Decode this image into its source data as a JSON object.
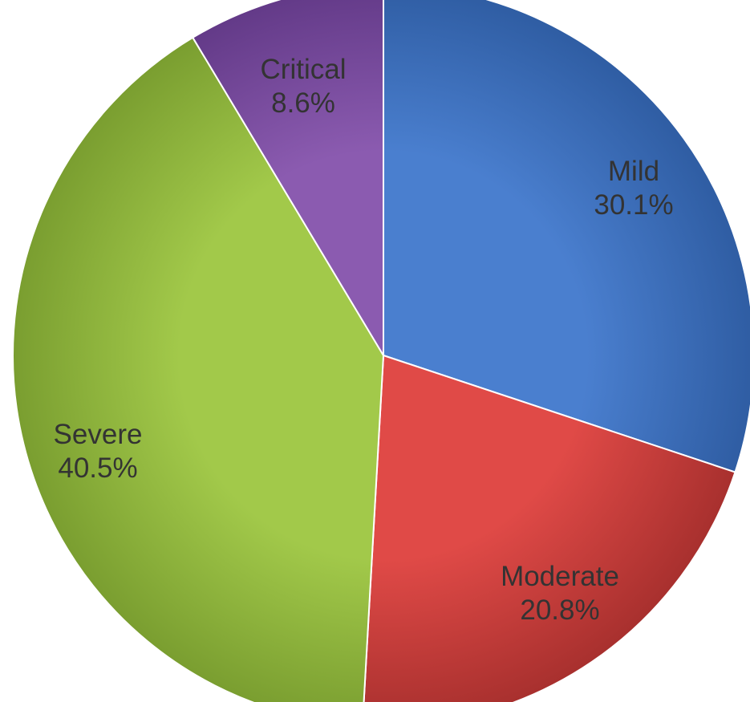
{
  "chart_data": {
    "type": "pie",
    "start_angle_deg": 0,
    "direction": "clockwise",
    "slices": [
      {
        "label": "Mild",
        "value": 30.1,
        "display": "30.1%",
        "color": "#4a7fcf",
        "color_dark": "#2f5da3"
      },
      {
        "label": "Moderate",
        "value": 20.8,
        "display": "20.8%",
        "color": "#e04a47",
        "color_dark": "#a8302e"
      },
      {
        "label": "Severe",
        "value": 40.5,
        "display": "40.5%",
        "color": "#a2c94a",
        "color_dark": "#7a9e30"
      },
      {
        "label": "Critical",
        "value": 8.6,
        "display": "8.6%",
        "color": "#8b5bb0",
        "color_dark": "#633a88"
      }
    ]
  }
}
